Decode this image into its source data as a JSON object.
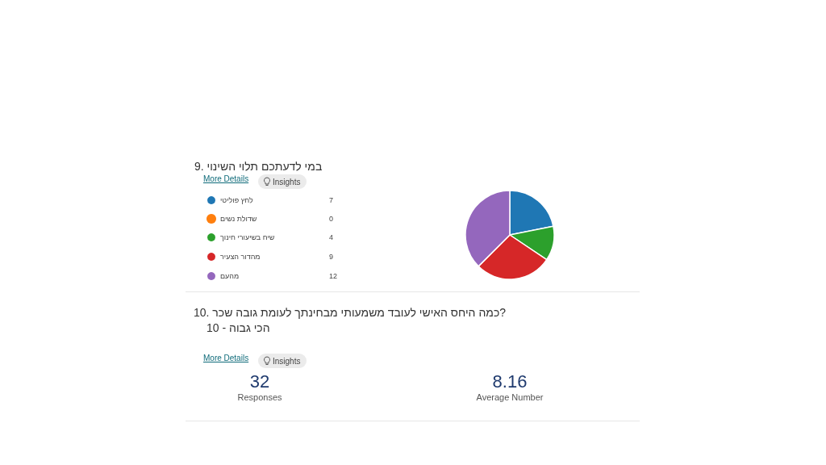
{
  "chart_data": [
    {
      "type": "pie",
      "title": "9. במי לדעתכם תלוי השינוי",
      "categories": [
        "לחץ פוליטי",
        "שדולת נשים",
        "שיח בשיעורי חינוך",
        "מהדור הצעיר",
        "מהעם"
      ],
      "values": [
        7,
        0,
        4,
        9,
        12
      ],
      "value_labels": [
        "7",
        "0",
        "4",
        "9",
        "12"
      ],
      "colors": [
        "#1f77b4",
        "#ff7f0e",
        "#2ca02c",
        "#d62728",
        "#9467bd"
      ],
      "legend": "left",
      "annotations": [
        "More Details",
        "Insights"
      ]
    },
    {
      "type": "other",
      "title": "10. כמה היחס האישי לעובד משמעותי מבחינתך לעומת גובה שכר?",
      "subtitle": "הכי גבוה - 10",
      "categories": [
        "Responses",
        "Average Number"
      ],
      "values": [
        32,
        8.16
      ],
      "value_labels": [
        "32",
        "8.16"
      ],
      "annotations": [
        "More Details",
        "Insights"
      ]
    }
  ]
}
